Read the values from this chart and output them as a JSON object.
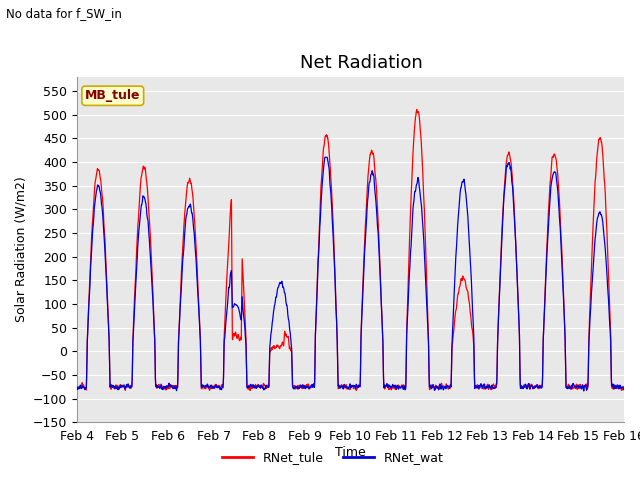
{
  "title": "Net Radiation",
  "subtitle": "No data for f_SW_in",
  "ylabel": "Solar Radiation (W/m2)",
  "xlabel": "Time",
  "ylim": [
    -150,
    580
  ],
  "yticks": [
    -150,
    -100,
    -50,
    0,
    50,
    100,
    150,
    200,
    250,
    300,
    350,
    400,
    450,
    500,
    550
  ],
  "xtick_labels": [
    "Feb 4",
    "Feb 5",
    "Feb 6",
    "Feb 7",
    "Feb 8",
    "Feb 9",
    "Feb 10",
    "Feb 11",
    "Feb 12",
    "Feb 13",
    "Feb 14",
    "Feb 15",
    "Feb 16"
  ],
  "legend_label1": "RNet_tule",
  "legend_label2": "RNet_wat",
  "color_tule": "#FF0000",
  "color_wat": "#0000DD",
  "annotation_box_text": "MB_tule",
  "annotation_box_color": "#FFFFCC",
  "annotation_box_edge": "#CCAA00",
  "annotation_text_color": "#880000",
  "background_color": "#E8E8E8",
  "grid_color": "#FFFFFF",
  "title_fontsize": 13,
  "label_fontsize": 9,
  "tick_fontsize": 9
}
